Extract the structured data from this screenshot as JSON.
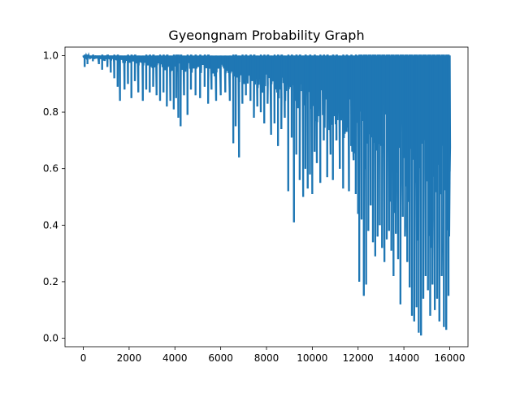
{
  "chart_data": {
    "type": "line",
    "title": "Gyeongnam Probability Graph",
    "xlabel": "",
    "ylabel": "",
    "xlim": [
      -800,
      16800
    ],
    "ylim": [
      -0.03,
      1.03
    ],
    "x_ticks": [
      0,
      2000,
      4000,
      6000,
      8000,
      10000,
      12000,
      14000,
      16000
    ],
    "y_ticks": [
      0.0,
      0.2,
      0.4,
      0.6,
      0.8,
      1.0
    ],
    "grid": false,
    "legend": "none",
    "series": [
      {
        "color": "#1f77b4",
        "x_start": 0,
        "x_step": 40,
        "dips": [
          [
            60,
            0.96
          ],
          [
            180,
            0.97
          ],
          [
            420,
            0.98
          ],
          [
            680,
            0.97
          ],
          [
            820,
            0.95
          ],
          [
            1050,
            0.96
          ],
          [
            1200,
            0.94
          ],
          [
            1350,
            0.92
          ],
          [
            1500,
            0.89
          ],
          [
            1600,
            0.84
          ],
          [
            1800,
            0.88
          ],
          [
            1950,
            0.9
          ],
          [
            2100,
            0.85
          ],
          [
            2250,
            0.91
          ],
          [
            2400,
            0.87
          ],
          [
            2600,
            0.84
          ],
          [
            2750,
            0.88
          ],
          [
            2900,
            0.87
          ],
          [
            3050,
            0.89
          ],
          [
            3200,
            0.86
          ],
          [
            3350,
            0.84
          ],
          [
            3500,
            0.87
          ],
          [
            3650,
            0.82
          ],
          [
            3800,
            0.84
          ],
          [
            3950,
            0.81
          ],
          [
            4050,
            0.85
          ],
          [
            4150,
            0.78
          ],
          [
            4250,
            0.75
          ],
          [
            4400,
            0.86
          ],
          [
            4550,
            0.79
          ],
          [
            4700,
            0.88
          ],
          [
            4900,
            0.86
          ],
          [
            5100,
            0.85
          ],
          [
            5300,
            0.89
          ],
          [
            5450,
            0.83
          ],
          [
            5600,
            0.88
          ],
          [
            5800,
            0.84
          ],
          [
            6000,
            0.86
          ],
          [
            6200,
            0.87
          ],
          [
            6400,
            0.84
          ],
          [
            6550,
            0.69
          ],
          [
            6650,
            0.75
          ],
          [
            6800,
            0.64
          ],
          [
            6950,
            0.83
          ],
          [
            7100,
            0.86
          ],
          [
            7300,
            0.84
          ],
          [
            7450,
            0.78
          ],
          [
            7600,
            0.82
          ],
          [
            7750,
            0.8
          ],
          [
            7900,
            0.76
          ],
          [
            8050,
            0.83
          ],
          [
            8200,
            0.72
          ],
          [
            8350,
            0.76
          ],
          [
            8500,
            0.68
          ],
          [
            8650,
            0.74
          ],
          [
            8800,
            0.78
          ],
          [
            8950,
            0.52
          ],
          [
            9100,
            0.71
          ],
          [
            9200,
            0.41
          ],
          [
            9300,
            0.65
          ],
          [
            9450,
            0.56
          ],
          [
            9600,
            0.5
          ],
          [
            9700,
            0.6
          ],
          [
            9800,
            0.53
          ],
          [
            9900,
            0.58
          ],
          [
            10000,
            0.51
          ],
          [
            10100,
            0.66
          ],
          [
            10200,
            0.62
          ],
          [
            10350,
            0.55
          ],
          [
            10500,
            0.7
          ],
          [
            10650,
            0.57
          ],
          [
            10800,
            0.65
          ],
          [
            10900,
            0.56
          ],
          [
            11050,
            0.7
          ],
          [
            11200,
            0.6
          ],
          [
            11350,
            0.53
          ],
          [
            11500,
            0.73
          ],
          [
            11600,
            0.52
          ],
          [
            11700,
            0.68
          ],
          [
            11800,
            0.63
          ],
          [
            11900,
            0.51
          ],
          [
            12000,
            0.44
          ],
          [
            12050,
            0.2
          ],
          [
            12150,
            0.42
          ],
          [
            12250,
            0.15
          ],
          [
            12350,
            0.19
          ],
          [
            12450,
            0.38
          ],
          [
            12550,
            0.47
          ],
          [
            12650,
            0.34
          ],
          [
            12750,
            0.29
          ],
          [
            12850,
            0.36
          ],
          [
            12950,
            0.4
          ],
          [
            13050,
            0.32
          ],
          [
            13150,
            0.27
          ],
          [
            13250,
            0.35
          ],
          [
            13350,
            0.38
          ],
          [
            13450,
            0.31
          ],
          [
            13550,
            0.22
          ],
          [
            13650,
            0.37
          ],
          [
            13750,
            0.28
          ],
          [
            13850,
            0.12
          ],
          [
            13950,
            0.43
          ],
          [
            14050,
            0.36
          ],
          [
            14150,
            0.27
          ],
          [
            14250,
            0.18
          ],
          [
            14350,
            0.08
          ],
          [
            14450,
            0.06
          ],
          [
            14550,
            0.11
          ],
          [
            14650,
            0.02
          ],
          [
            14750,
            0.01
          ],
          [
            14850,
            0.14
          ],
          [
            14950,
            0.22
          ],
          [
            15050,
            0.17
          ],
          [
            15150,
            0.08
          ],
          [
            15250,
            0.19
          ],
          [
            15350,
            0.1
          ],
          [
            15450,
            0.14
          ],
          [
            15550,
            0.06
          ],
          [
            15650,
            0.22
          ],
          [
            15750,
            0.04
          ],
          [
            15850,
            0.03
          ],
          [
            15950,
            0.15
          ],
          [
            16000,
            0.59
          ]
        ],
        "noise_floor": [
          [
            0,
            0.99
          ],
          [
            2000,
            0.97
          ],
          [
            4000,
            0.94
          ],
          [
            6000,
            0.92
          ],
          [
            7500,
            0.88
          ],
          [
            9000,
            0.82
          ],
          [
            10500,
            0.74
          ],
          [
            12000,
            0.62
          ],
          [
            13000,
            0.52
          ],
          [
            14000,
            0.38
          ],
          [
            15000,
            0.28
          ],
          [
            16000,
            0.22
          ]
        ],
        "x_end": 16000
      }
    ]
  }
}
